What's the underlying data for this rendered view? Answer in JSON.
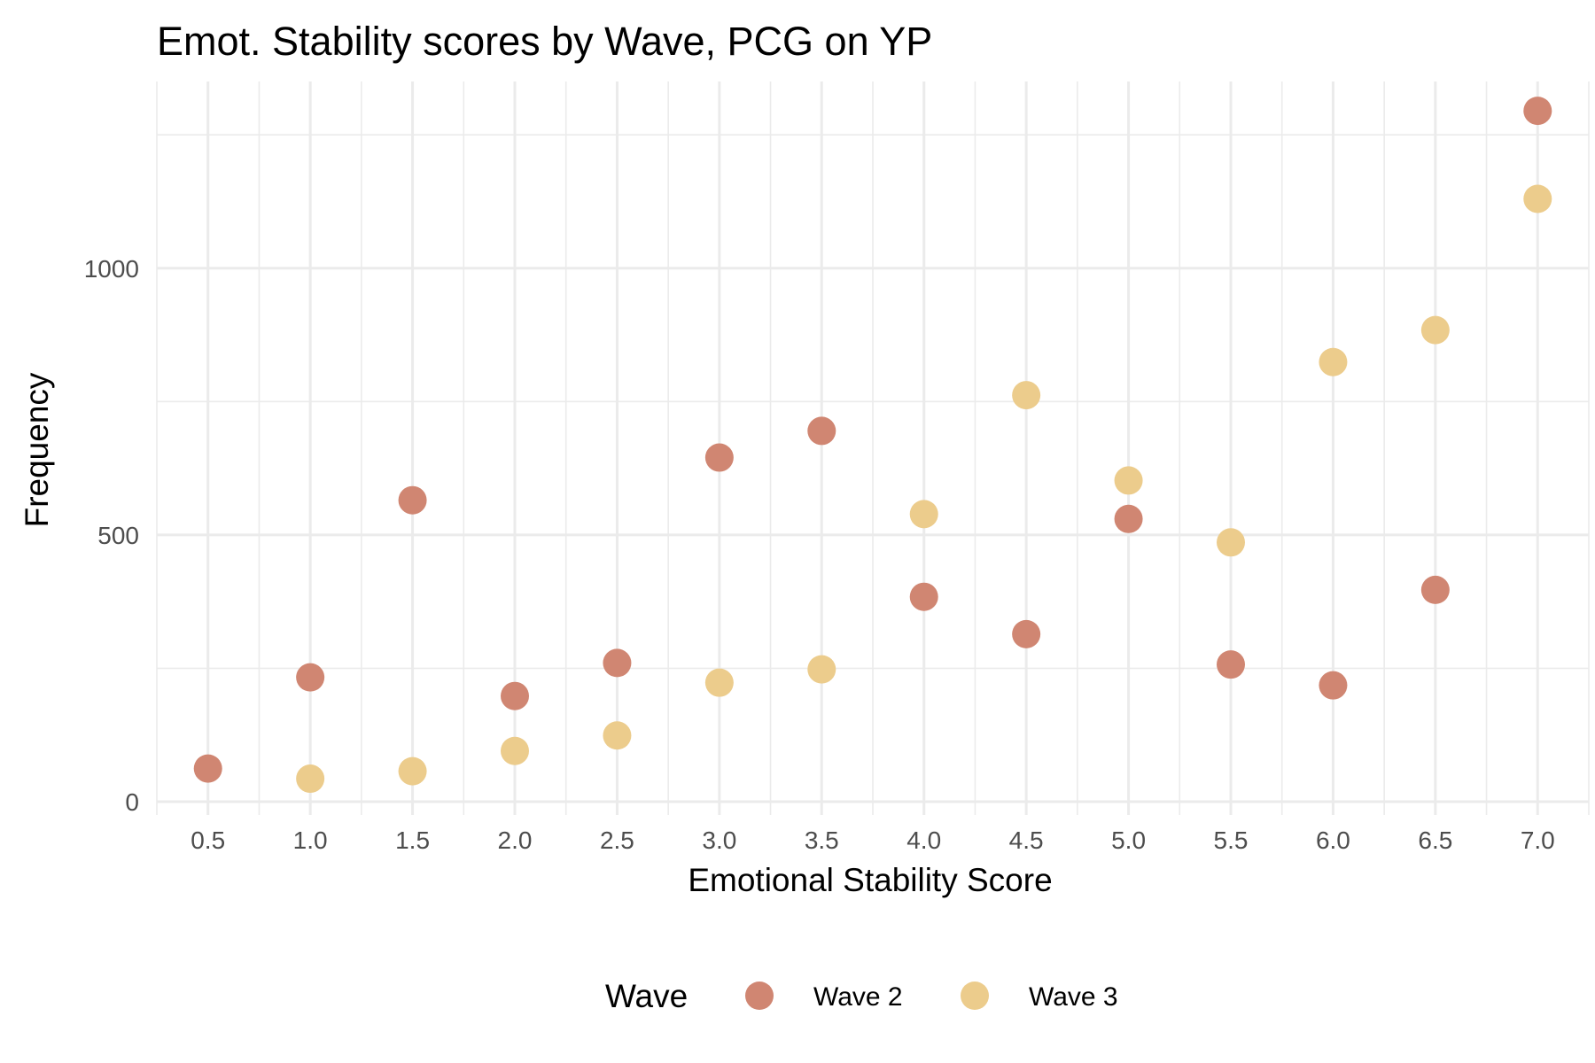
{
  "chart_data": {
    "type": "scatter",
    "title": "Emot. Stability scores by Wave, PCG on YP",
    "xlabel": "Emotional Stability Score",
    "ylabel": "Frequency",
    "x_ticks": [
      "0.5",
      "1.0",
      "1.5",
      "2.0",
      "2.5",
      "3.0",
      "3.5",
      "4.0",
      "4.5",
      "5.0",
      "5.5",
      "6.0",
      "6.5",
      "7.0"
    ],
    "y_ticks": [
      "0",
      "500",
      "1000"
    ],
    "xlim": [
      0.25,
      7.25
    ],
    "ylim": [
      -25,
      1350
    ],
    "grid": true,
    "legend": {
      "title": "Wave",
      "position": "bottom"
    },
    "series": [
      {
        "name": "Wave 2",
        "color": "#d08672",
        "x": [
          0.5,
          1.0,
          1.5,
          2.0,
          2.5,
          3.0,
          3.5,
          4.0,
          4.5,
          5.0,
          5.5,
          6.0,
          6.5,
          7.0
        ],
        "values": [
          62,
          233,
          565,
          198,
          260,
          645,
          695,
          384,
          314,
          530,
          257,
          218,
          397,
          1295
        ]
      },
      {
        "name": "Wave 3",
        "color": "#eccc8c",
        "x": [
          0.5,
          1.0,
          1.5,
          2.0,
          2.5,
          3.0,
          3.5,
          4.0,
          4.5,
          5.0,
          5.5,
          6.0,
          6.5,
          7.0
        ],
        "values": [
          null,
          43,
          57,
          95,
          124,
          223,
          248,
          539,
          762,
          602,
          486,
          824,
          884,
          1130
        ]
      }
    ]
  }
}
